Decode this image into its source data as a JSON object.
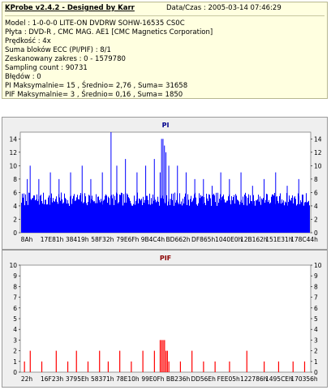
{
  "header": {
    "title": "KProbe v2.4.2 - Designed by Karr",
    "datetime": "Data/Czas : 2005-03-14 07:46:29"
  },
  "info_lines": [
    "Model : 1-0-0-0 LITE-ON DVDRW SOHW-16535 CS0C",
    "Płyta : DVD-R , CMC MAG. AE1 [CMC Magnetics Corporation]",
    "Prędkość : 4x",
    "Suma bloków ECC (PI/PIF) : 8/1",
    "Zeskanowany zakres : 0 - 1579780",
    "Sampling count : 90731",
    "Błędów : 0",
    "PI Maksymalnie= 15 , Średnio= 2,76 , Suma= 31658",
    "PIF Maksymalnie= 3 , Średnio= 0,16 , Suma= 1850"
  ],
  "colors": {
    "pi_bar": "#0000ff",
    "pif_bar": "#ff0000",
    "pi_title": "#00008b",
    "pif_title": "#8b0000",
    "plot_bg": "#ffffff",
    "panel_bg": "#efefef"
  },
  "chart_data": [
    {
      "type": "bar",
      "title": "PI",
      "ylim": [
        0,
        15
      ],
      "y_ticks": [
        0,
        2,
        4,
        6,
        8,
        10,
        12,
        14
      ],
      "y_ticks_right": true,
      "grid": false,
      "x_tick_labels": [
        "8Ah",
        "17E81h",
        "38419h",
        "58F32h",
        "79E6Fh",
        "9B4C4h",
        "BD662h",
        "DF865h",
        "1040E0h",
        "12B162h",
        "151E31h",
        "178C44h"
      ],
      "baseline_range": [
        4,
        6
      ],
      "spikes": [
        {
          "pos": 0.02,
          "value": 8
        },
        {
          "pos": 0.03,
          "value": 10
        },
        {
          "pos": 0.06,
          "value": 8
        },
        {
          "pos": 0.1,
          "value": 9
        },
        {
          "pos": 0.13,
          "value": 8
        },
        {
          "pos": 0.17,
          "value": 9
        },
        {
          "pos": 0.21,
          "value": 10
        },
        {
          "pos": 0.24,
          "value": 8
        },
        {
          "pos": 0.28,
          "value": 9
        },
        {
          "pos": 0.31,
          "value": 15
        },
        {
          "pos": 0.33,
          "value": 10
        },
        {
          "pos": 0.36,
          "value": 11
        },
        {
          "pos": 0.4,
          "value": 9
        },
        {
          "pos": 0.43,
          "value": 10
        },
        {
          "pos": 0.46,
          "value": 11
        },
        {
          "pos": 0.48,
          "value": 9
        },
        {
          "pos": 0.485,
          "value": 14
        },
        {
          "pos": 0.49,
          "value": 14
        },
        {
          "pos": 0.495,
          "value": 13
        },
        {
          "pos": 0.5,
          "value": 12
        },
        {
          "pos": 0.51,
          "value": 10
        },
        {
          "pos": 0.54,
          "value": 10
        },
        {
          "pos": 0.57,
          "value": 9
        },
        {
          "pos": 0.6,
          "value": 8
        },
        {
          "pos": 0.63,
          "value": 8
        },
        {
          "pos": 0.66,
          "value": 7
        },
        {
          "pos": 0.69,
          "value": 9
        },
        {
          "pos": 0.72,
          "value": 8
        },
        {
          "pos": 0.76,
          "value": 9
        },
        {
          "pos": 0.8,
          "value": 7
        },
        {
          "pos": 0.84,
          "value": 8
        },
        {
          "pos": 0.88,
          "value": 9
        },
        {
          "pos": 0.92,
          "value": 7
        },
        {
          "pos": 0.96,
          "value": 8
        }
      ]
    },
    {
      "type": "bar",
      "title": "PIF",
      "ylim": [
        0,
        10
      ],
      "y_ticks": [
        0,
        1,
        2,
        3,
        4,
        5,
        6,
        7,
        8,
        9,
        10
      ],
      "y_ticks_right": true,
      "grid": false,
      "x_tick_labels": [
        "22h",
        "16F23h",
        "3795Eh",
        "58371h",
        "78E10h",
        "99E0Fh",
        "BB236h",
        "DD56Eh",
        "FEE05h",
        "122786h",
        "1495CEh",
        "170356h"
      ],
      "bars": [
        {
          "pos": 0.01,
          "value": 1
        },
        {
          "pos": 0.03,
          "value": 2
        },
        {
          "pos": 0.07,
          "value": 1
        },
        {
          "pos": 0.12,
          "value": 2
        },
        {
          "pos": 0.16,
          "value": 1
        },
        {
          "pos": 0.19,
          "value": 2
        },
        {
          "pos": 0.23,
          "value": 1
        },
        {
          "pos": 0.27,
          "value": 2
        },
        {
          "pos": 0.3,
          "value": 1
        },
        {
          "pos": 0.34,
          "value": 2
        },
        {
          "pos": 0.38,
          "value": 1
        },
        {
          "pos": 0.42,
          "value": 2
        },
        {
          "pos": 0.46,
          "value": 2
        },
        {
          "pos": 0.48,
          "value": 3
        },
        {
          "pos": 0.485,
          "value": 3
        },
        {
          "pos": 0.49,
          "value": 3
        },
        {
          "pos": 0.495,
          "value": 3
        },
        {
          "pos": 0.5,
          "value": 2
        },
        {
          "pos": 0.505,
          "value": 2
        },
        {
          "pos": 0.51,
          "value": 1
        },
        {
          "pos": 0.55,
          "value": 1
        },
        {
          "pos": 0.59,
          "value": 2
        },
        {
          "pos": 0.63,
          "value": 1
        },
        {
          "pos": 0.67,
          "value": 1
        },
        {
          "pos": 0.72,
          "value": 1
        },
        {
          "pos": 0.78,
          "value": 2
        },
        {
          "pos": 0.84,
          "value": 1
        },
        {
          "pos": 0.89,
          "value": 1
        },
        {
          "pos": 0.94,
          "value": 1
        },
        {
          "pos": 0.98,
          "value": 1
        }
      ]
    }
  ]
}
